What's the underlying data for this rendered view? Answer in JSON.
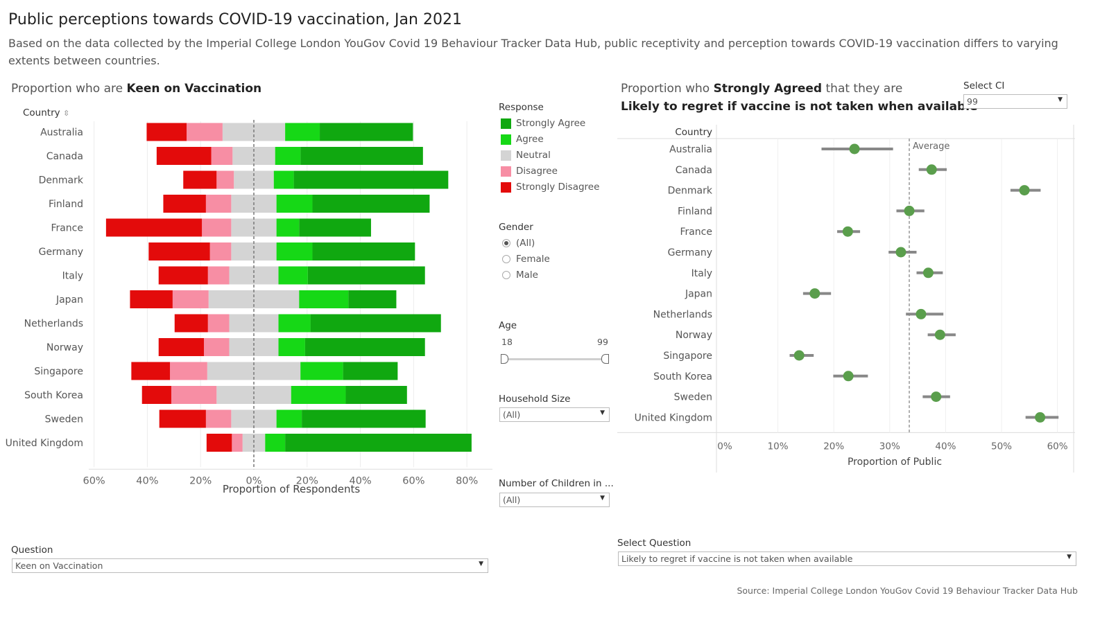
{
  "title": "Public perceptions towards COVID-19 vaccination, Jan 2021",
  "subtitle": "Based on the data collected by the Imperial College London YouGov Covid 19 Behaviour Tracker Data Hub, public receptivity and perception towards COVID-19 vaccination differs to varying extents between countries.",
  "left_panel": {
    "title_prefix": "Proportion who are ",
    "title_bold": "Keen on Vaccination"
  },
  "right_panel": {
    "title_line1_prefix": "Proportion who ",
    "title_line1_bold": "Strongly Agreed",
    "title_line1_suffix": " that they are",
    "title_line2": "Likely to regret if vaccine is not taken when available"
  },
  "legend": {
    "title": "Response",
    "items": [
      {
        "label": "Strongly Agree",
        "color": "#10a810"
      },
      {
        "label": "Agree",
        "color": "#16d816"
      },
      {
        "label": "Neutral",
        "color": "#d4d4d4"
      },
      {
        "label": "Disagree",
        "color": "#f78ea4"
      },
      {
        "label": "Strongly Disagree",
        "color": "#e30b0b"
      }
    ]
  },
  "filters": {
    "gender": {
      "label": "Gender",
      "options": [
        "(All)",
        "Female",
        "Male"
      ],
      "selected": "(All)"
    },
    "age": {
      "label": "Age",
      "min": "18",
      "max": "99"
    },
    "household": {
      "label": "Household Size",
      "value": "(All)"
    },
    "children": {
      "label": "Number of Children in ...",
      "value": "(All)"
    },
    "select_ci": {
      "label": "Select CI",
      "value": "99"
    },
    "question": {
      "label": "Question",
      "value": "Keen on Vaccination"
    },
    "select_question": {
      "label": "Select Question",
      "value": "Likely to regret if vaccine is not taken when available"
    }
  },
  "source": "Source: Imperial College London YouGov Covid 19 Behaviour Tracker Data Hub",
  "chart_data": [
    {
      "type": "bar",
      "subtype": "diverging-stacked",
      "title": "Proportion who are Keen on Vaccination",
      "xlabel": "Proportion of Respondents",
      "ylabel": "Country",
      "xlim": [
        -60,
        80
      ],
      "x_ticks": [
        "60%",
        "40%",
        "20%",
        "0%",
        "20%",
        "40%",
        "60%",
        "80%"
      ],
      "x_tick_values": [
        -60,
        -40,
        -20,
        0,
        20,
        40,
        60,
        80
      ],
      "categories": [
        "Australia",
        "Canada",
        "Denmark",
        "Finland",
        "France",
        "Germany",
        "Italy",
        "Japan",
        "Netherlands",
        "Norway",
        "Singapore",
        "South Korea",
        "Sweden",
        "United Kingdom"
      ],
      "series": [
        {
          "name": "Strongly Disagree",
          "color": "#e30b0b",
          "values": [
            15,
            20.5,
            12.5,
            16,
            36,
            23,
            18.5,
            16,
            12.5,
            17,
            14.5,
            11,
            17.5,
            9.5
          ]
        },
        {
          "name": "Disagree",
          "color": "#f78ea4",
          "values": [
            13.5,
            8,
            6.5,
            9.5,
            11,
            8,
            8,
            13.5,
            8,
            9.5,
            14,
            17,
            9.5,
            4
          ]
        },
        {
          "name": "Neutral",
          "color": "#d4d4d4",
          "values": [
            23.5,
            16,
            15,
            17,
            17,
            17,
            18.5,
            34,
            18.5,
            18.5,
            35,
            28,
            17,
            8.5
          ]
        },
        {
          "name": "Agree",
          "color": "#16d816",
          "values": [
            13,
            9.5,
            7.5,
            13.5,
            8.5,
            13.5,
            11,
            18.5,
            12,
            10,
            16,
            20.5,
            9.5,
            7.5
          ]
        },
        {
          "name": "Strongly Agree",
          "color": "#10a810",
          "values": [
            35,
            46,
            58,
            44,
            27,
            38.5,
            44,
            18,
            49,
            45,
            20.5,
            23,
            46.5,
            70
          ]
        }
      ]
    },
    {
      "type": "scatter",
      "subtype": "dot-with-confidence-interval",
      "title": "Proportion who Strongly Agreed that they are Likely to regret if vaccine is not taken when available",
      "xlabel": "Proportion of Public",
      "ylabel": "Country",
      "xlim": [
        0,
        63
      ],
      "x_ticks": [
        "0%",
        "10%",
        "20%",
        "30%",
        "40%",
        "50%",
        "60%"
      ],
      "x_tick_values": [
        0,
        10,
        20,
        30,
        40,
        50,
        60
      ],
      "average": 33.5,
      "average_label": "Average",
      "categories": [
        "Australia",
        "Canada",
        "Denmark",
        "Finland",
        "France",
        "Germany",
        "Italy",
        "Japan",
        "Netherlands",
        "Norway",
        "Singapore",
        "South Korea",
        "Sweden",
        "United Kingdom"
      ],
      "values": [
        23.7,
        37.5,
        54.1,
        33.5,
        22.5,
        32.0,
        36.9,
        16.6,
        35.6,
        39.0,
        13.8,
        22.6,
        38.3,
        56.9
      ],
      "ci_low": [
        17.8,
        35.2,
        51.6,
        31.2,
        20.6,
        29.8,
        34.8,
        14.5,
        32.9,
        36.8,
        12.1,
        19.9,
        35.9,
        54.3
      ],
      "ci_high": [
        30.6,
        40.2,
        57.0,
        36.2,
        24.7,
        34.8,
        39.5,
        19.5,
        39.6,
        41.8,
        16.4,
        26.1,
        40.8,
        60.2
      ],
      "point_color": "#5a9e4c"
    }
  ]
}
